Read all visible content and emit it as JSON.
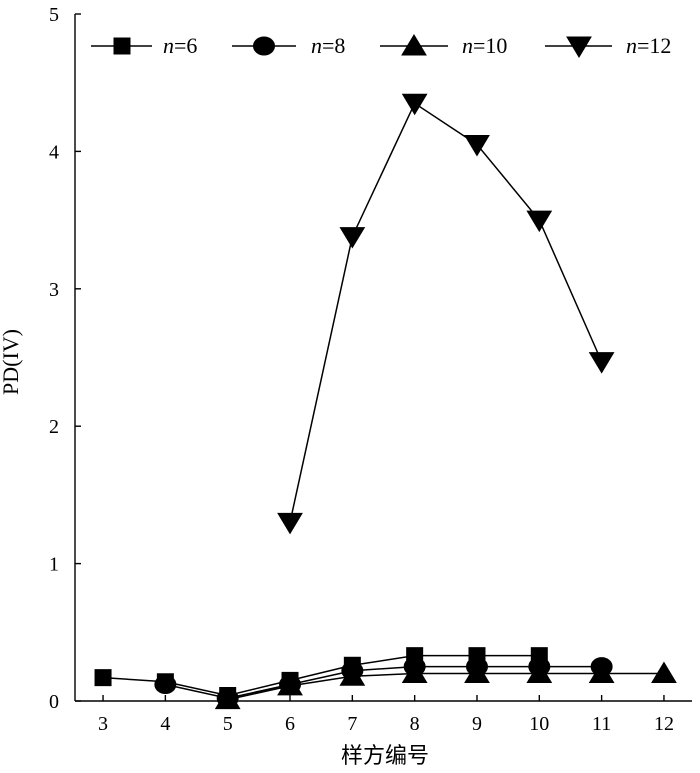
{
  "chart_data": {
    "type": "line",
    "title": "",
    "xlabel": "样方编号",
    "ylabel": "PD(IV)",
    "xlim": [
      2.55,
      12.45
    ],
    "ylim": [
      0,
      5
    ],
    "x_ticks": [
      3,
      4,
      5,
      6,
      7,
      8,
      9,
      10,
      11,
      12
    ],
    "y_ticks": [
      0,
      1,
      2,
      3,
      4,
      5
    ],
    "grid": false,
    "legend_position": "top",
    "series": [
      {
        "name": "n=6",
        "name_var": "n",
        "name_rest": "=6",
        "marker": "square",
        "x": [
          3,
          4,
          5,
          6,
          7,
          8,
          9,
          10
        ],
        "y": [
          0.17,
          0.14,
          0.04,
          0.15,
          0.26,
          0.33,
          0.33,
          0.33
        ]
      },
      {
        "name": "n=8",
        "name_var": "n",
        "name_rest": "=8",
        "marker": "circle",
        "x": [
          4,
          5,
          6,
          7,
          8,
          9,
          10,
          11
        ],
        "y": [
          0.12,
          0.02,
          0.12,
          0.22,
          0.25,
          0.25,
          0.25,
          0.25
        ]
      },
      {
        "name": "n=10",
        "name_var": "n",
        "name_rest": "=10",
        "marker": "triangle-up",
        "x": [
          5,
          6,
          7,
          8,
          9,
          10,
          11,
          12
        ],
        "y": [
          0.01,
          0.11,
          0.18,
          0.2,
          0.2,
          0.2,
          0.2,
          0.2
        ]
      },
      {
        "name": "n=12",
        "name_var": "n",
        "name_rest": "=12",
        "marker": "triangle-down",
        "x": [
          6,
          7,
          8,
          9,
          10,
          11
        ],
        "y": [
          1.3,
          3.38,
          4.35,
          4.05,
          3.5,
          2.47
        ]
      }
    ]
  }
}
